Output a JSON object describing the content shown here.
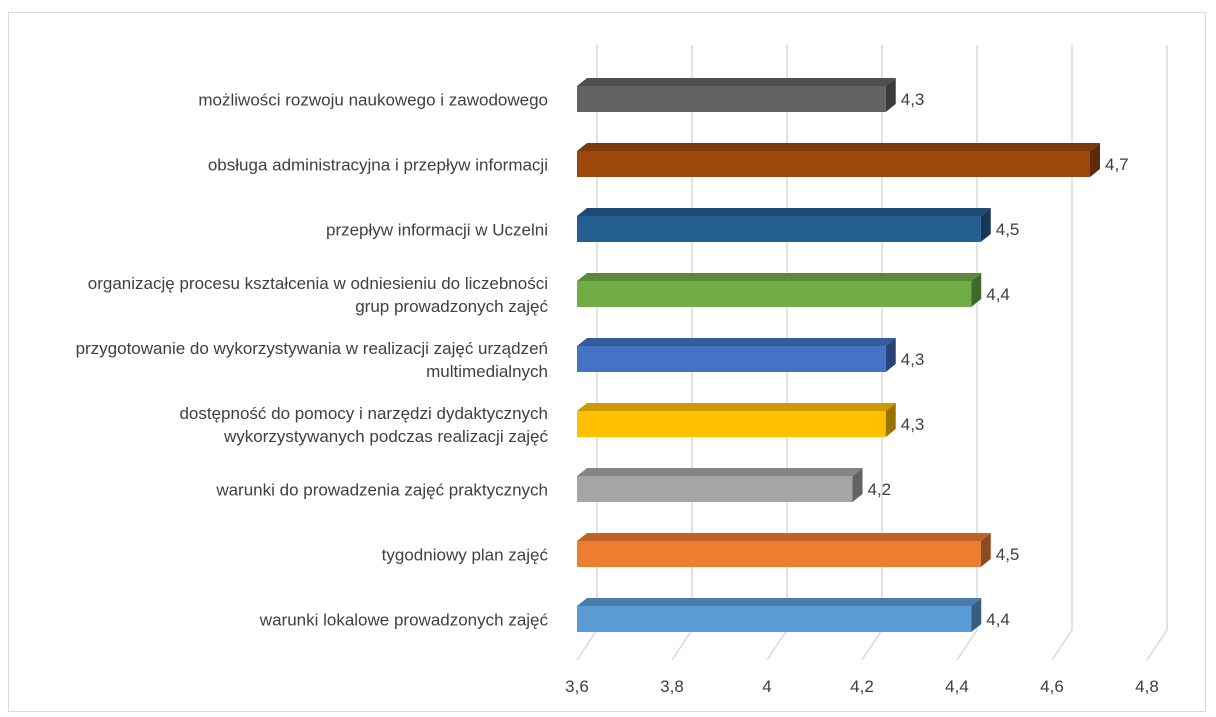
{
  "chart_data": {
    "type": "bar3d",
    "categories": [
      "możliwości rozwoju naukowego i zawodowego",
      "obsługa administracyjna i przepływ informacji",
      "przepływ informacji w Uczelni",
      "organizację procesu kształcenia w odniesieniu do liczebności grup prowadzonych zajęć",
      "przygotowanie do wykorzystywania w realizacji zajęć urządzeń multimedialnych",
      "dostępność do pomocy i narzędzi dydaktycznych wykorzystywanych podczas realizacji zajęć",
      "warunki do prowadzenia zajęć praktycznych",
      "tygodniowy plan zajęć",
      "warunki lokalowe prowadzonych zajęć"
    ],
    "values": [
      4.25,
      4.68,
      4.45,
      4.43,
      4.25,
      4.25,
      4.18,
      4.45,
      4.43
    ],
    "value_labels": [
      "4,3",
      "4,7",
      "4,5",
      "4,4",
      "4,3",
      "4,3",
      "4,2",
      "4,5",
      "4,4"
    ],
    "colors": [
      "#636363",
      "#9e480e",
      "#255e91",
      "#70ad47",
      "#4472c4",
      "#ffc000",
      "#a5a5a5",
      "#ed7d31",
      "#5b9bd5"
    ],
    "xlim": [
      3.6,
      4.8
    ],
    "xticks": [
      {
        "value": 3.6,
        "label": "3,6"
      },
      {
        "value": 3.8,
        "label": "3,8"
      },
      4,
      {
        "value": 4.2,
        "label": "4,2"
      },
      {
        "value": 4.4,
        "label": "4,4"
      },
      {
        "value": 4.6,
        "label": "4,6"
      },
      {
        "value": 4.8,
        "label": "4,8"
      }
    ],
    "grid": true
  }
}
